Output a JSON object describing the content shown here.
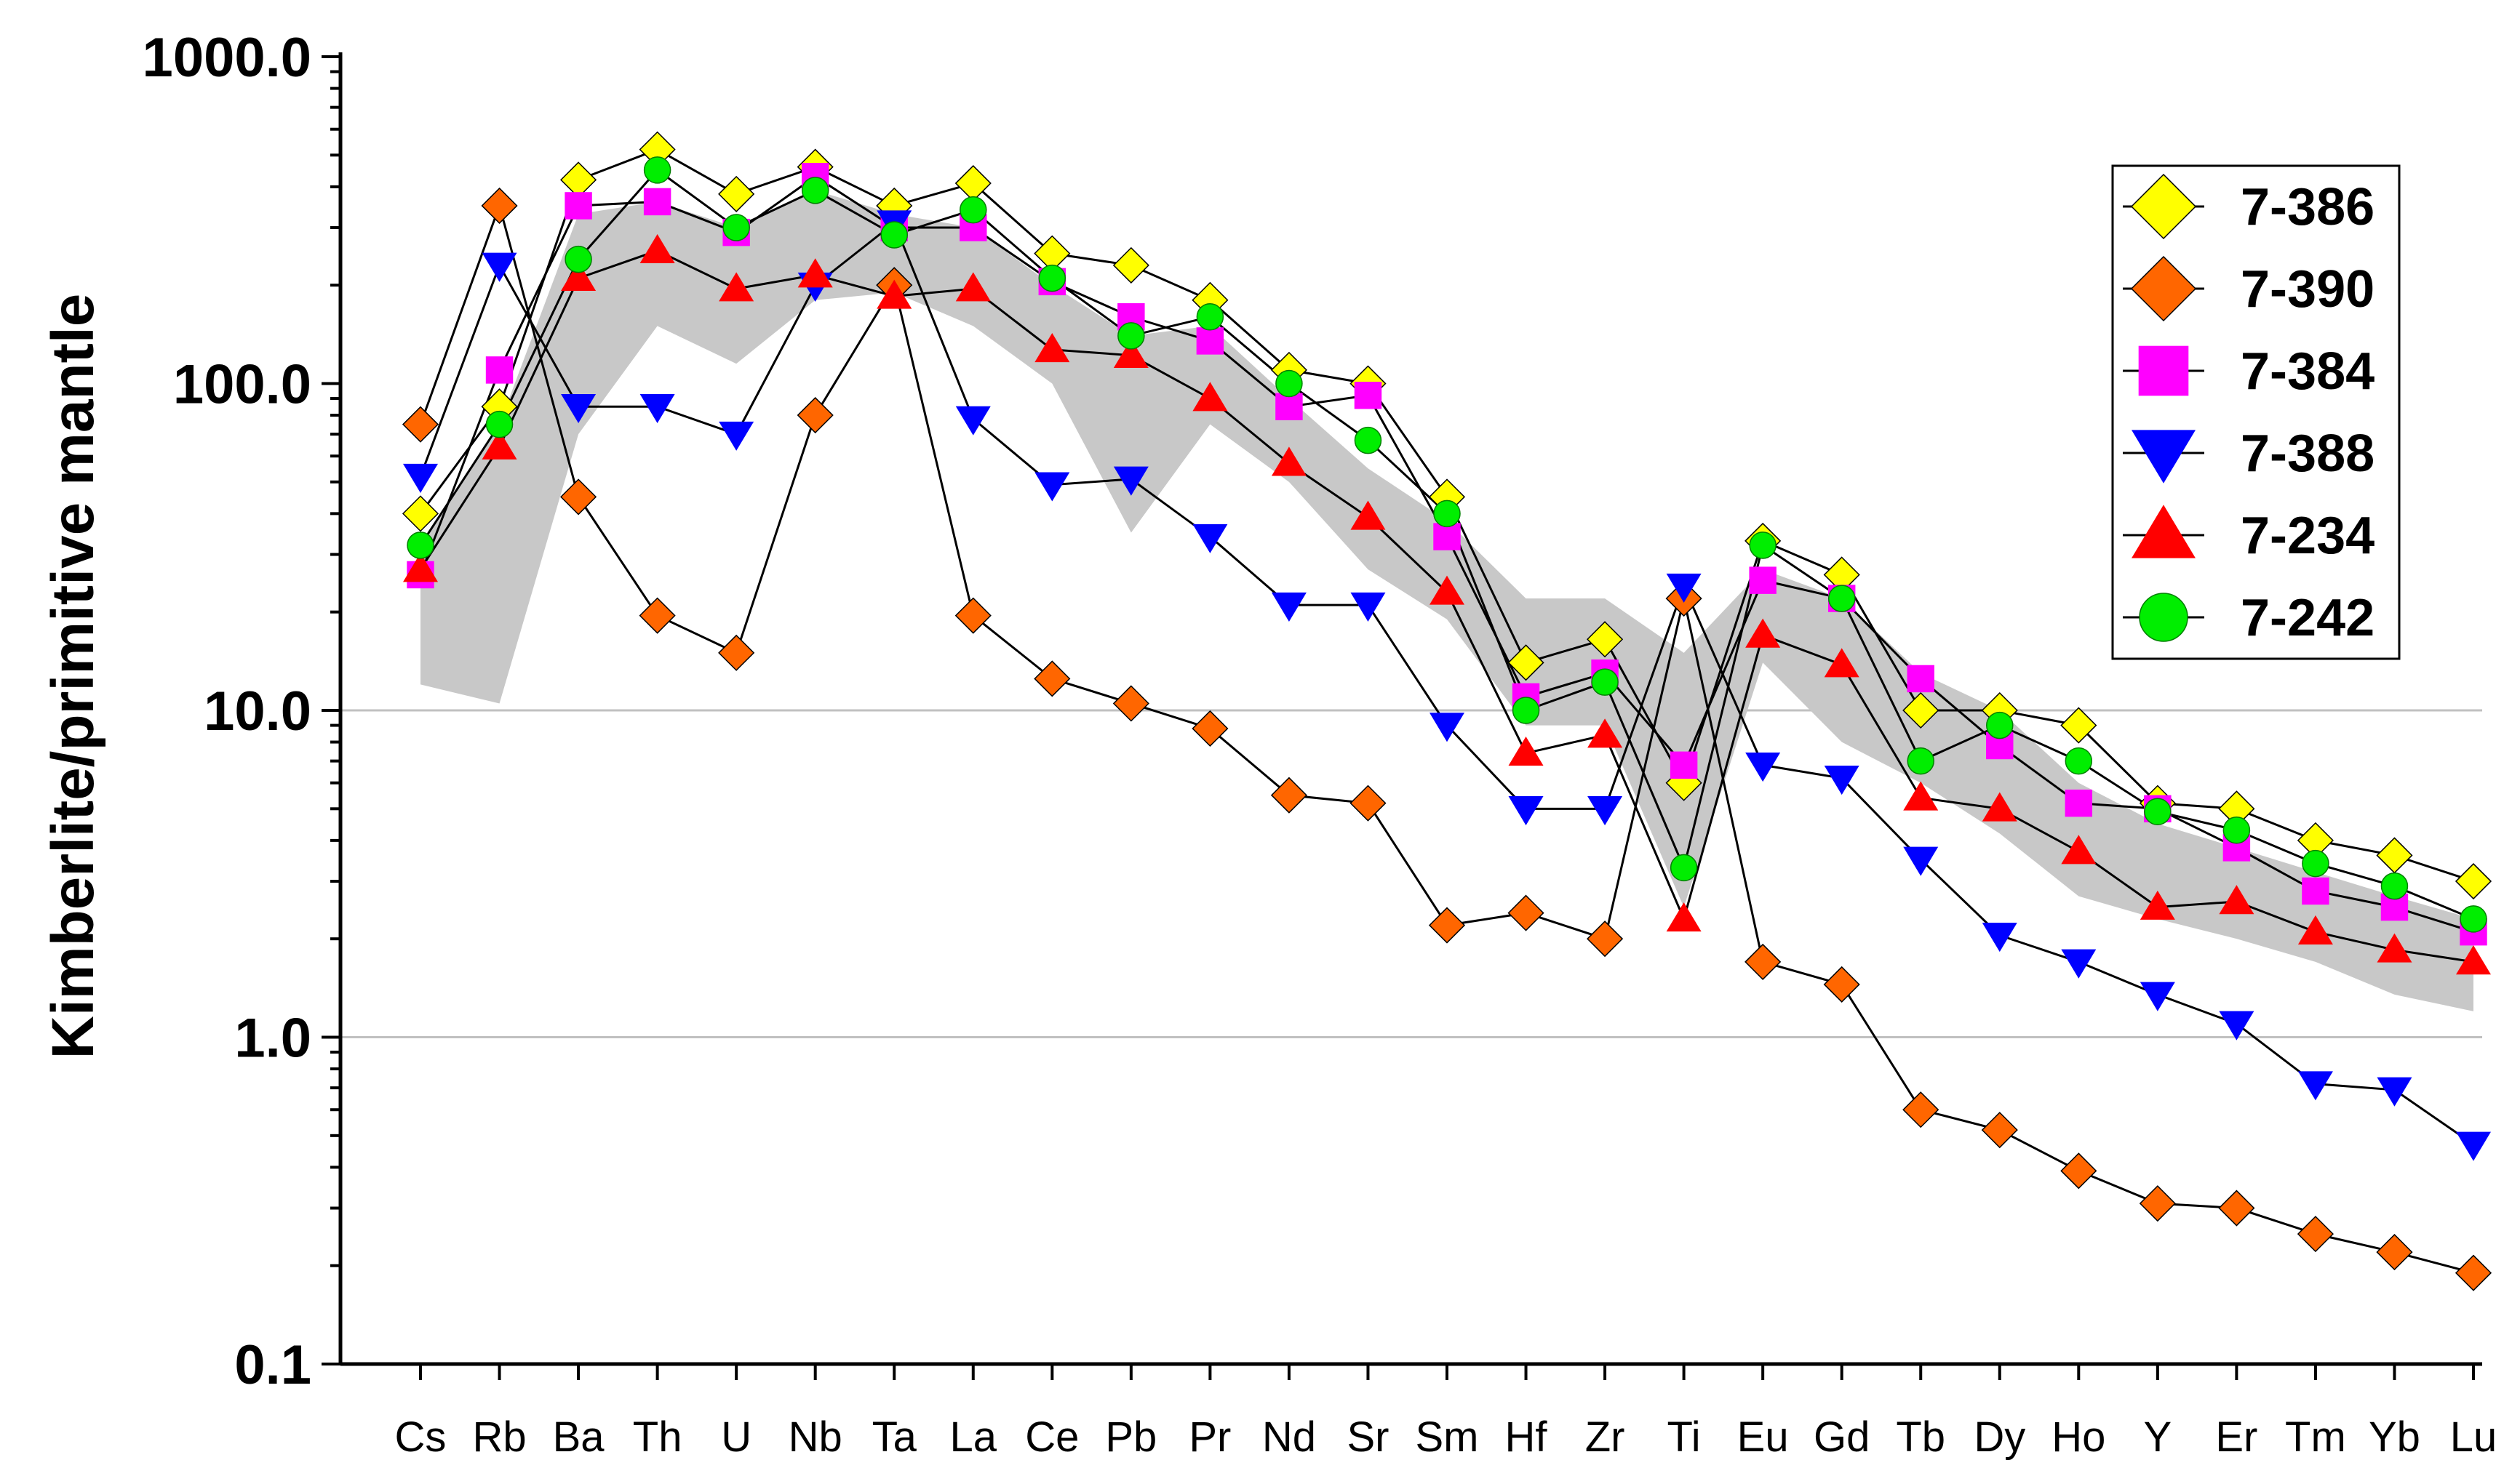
{
  "chart_data": {
    "type": "line",
    "scale": "log",
    "xlabel": "",
    "ylabel": "Kimberlite/primitive mantle",
    "ylim": [
      0.1,
      1000
    ],
    "yticks": [
      "1000.0",
      "100.0",
      "10.0",
      "1.0",
      "0.1"
    ],
    "grid": "horizontal lines at 10 and 1",
    "legend_position": "top-right",
    "categories": [
      "Cs",
      "Rb",
      "Ba",
      "Th",
      "U",
      "Nb",
      "Ta",
      "La",
      "Ce",
      "Pb",
      "Pr",
      "Nd",
      "Sr",
      "Sm",
      "Hf",
      "Zr",
      "Ti",
      "Eu",
      "Gd",
      "Tb",
      "Dy",
      "Ho",
      "Y",
      "Er",
      "Tm",
      "Yb",
      "Lu"
    ],
    "band": {
      "fill": "#c8c8c8",
      "upper": [
        32,
        75,
        330,
        360,
        300,
        390,
        330,
        300,
        200,
        140,
        150,
        90,
        55,
        38,
        22,
        22,
        15,
        27,
        22,
        13,
        10,
        6,
        4.5,
        3.8,
        3.2,
        2.7,
        2.3
      ],
      "lower": [
        12,
        10.5,
        70,
        150,
        115,
        180,
        190,
        150,
        100,
        35,
        75,
        50,
        27,
        19,
        9,
        9,
        2.5,
        14,
        8,
        6,
        4.2,
        2.7,
        2.3,
        2,
        1.7,
        1.35,
        1.2
      ]
    },
    "series": [
      {
        "name": "7-386",
        "marker": "diamond",
        "color": "#ffff00",
        "values": [
          40,
          85,
          420,
          520,
          380,
          460,
          350,
          410,
          250,
          230,
          180,
          110,
          100,
          45,
          14,
          16.5,
          6,
          33,
          26,
          10,
          10,
          9,
          5.2,
          5,
          4,
          3.6,
          3
        ]
      },
      {
        "name": "7-390",
        "marker": "diamond",
        "color": "#ff6600",
        "values": [
          75,
          350,
          45,
          19.5,
          15,
          80,
          200,
          19.5,
          12.5,
          10.5,
          8.8,
          5.5,
          5.2,
          2.2,
          2.4,
          2,
          22,
          1.7,
          1.45,
          0.6,
          0.52,
          0.39,
          0.31,
          0.3,
          0.25,
          0.22,
          0.19
        ]
      },
      {
        "name": "7-384",
        "marker": "square",
        "color": "#ff00ff",
        "values": [
          26,
          110,
          350,
          360,
          290,
          430,
          300,
          300,
          205,
          160,
          135,
          85,
          92,
          34,
          11,
          13,
          6.8,
          25,
          22,
          12.5,
          7.8,
          5.2,
          5,
          3.8,
          2.8,
          2.5,
          2.1
        ]
      },
      {
        "name": "7-388",
        "marker": "triangle-down",
        "color": "#0000ff",
        "values": [
          52,
          230,
          85,
          85,
          70,
          200,
          310,
          78,
          49,
          51,
          34,
          21,
          21,
          9,
          5,
          5,
          24,
          6.8,
          6.2,
          3.5,
          2.05,
          1.7,
          1.35,
          1.1,
          0.72,
          0.69,
          0.47
        ]
      },
      {
        "name": "7-234",
        "marker": "triangle-up",
        "color": "#ff0000",
        "values": [
          27,
          64,
          210,
          255,
          195,
          215,
          185,
          195,
          127,
          122,
          90,
          57,
          39,
          23,
          7.4,
          8.4,
          2.3,
          17,
          13.8,
          5.4,
          5,
          3.7,
          2.5,
          2.6,
          2.1,
          1.85,
          1.7
        ]
      },
      {
        "name": "7-242",
        "marker": "circle",
        "color": "#00ee00",
        "values": [
          32,
          75,
          240,
          450,
          300,
          390,
          285,
          340,
          210,
          140,
          160,
          100,
          67,
          40,
          10,
          12.2,
          3.3,
          32,
          22,
          7,
          9,
          7,
          4.9,
          4.3,
          3.4,
          2.9,
          2.3
        ]
      }
    ]
  }
}
